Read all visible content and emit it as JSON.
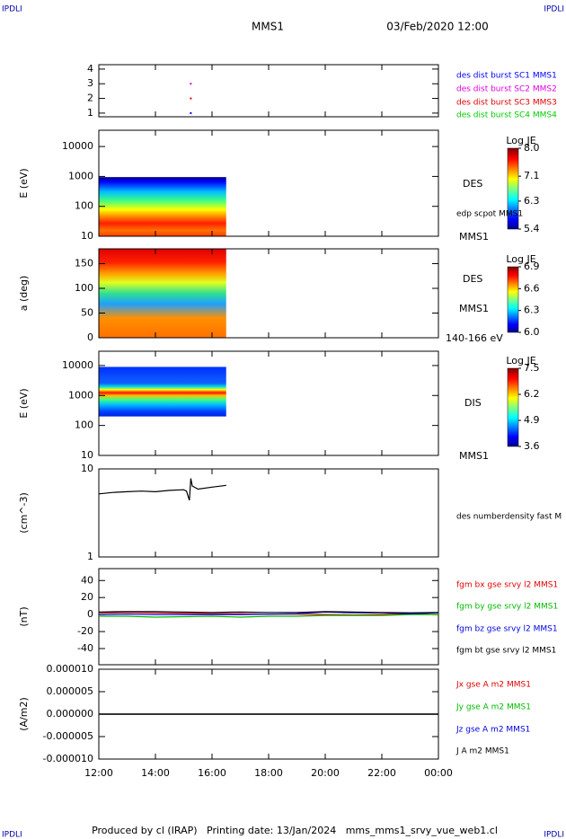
{
  "header": {
    "corner": "IPDLI",
    "spacecraft": "MMS1",
    "date": "03/Feb/2020 12:00"
  },
  "footer": "Produced by cl (IRAP)   Printing date: 13/Jan/2024   mms_mms1_srvy_vue_web1.cl",
  "chart_data": [
    {
      "type": "scatter",
      "ylim": [
        0.75,
        4.3
      ],
      "yticks": [
        1,
        2,
        3,
        4
      ],
      "xlim": [
        12,
        24
      ],
      "x": [
        15.25
      ],
      "series": [
        {
          "name": "des dist burst SC1 MMS1",
          "color": "#0000ff",
          "values": [
            1
          ]
        },
        {
          "name": "des dist burst SC2 MMS2",
          "color": "#e000e0",
          "values": [
            3
          ]
        },
        {
          "name": "des dist burst SC3 MMS3",
          "color": "#e00000",
          "values": [
            2
          ]
        },
        {
          "name": "des dist burst SC4 MMS4",
          "color": "#00cc00",
          "values": [
            null
          ]
        }
      ]
    },
    {
      "type": "spectrogram",
      "y_label": "E (eV)",
      "log_y": true,
      "ylim": [
        10,
        35000
      ],
      "yticks": [
        10,
        100,
        1000,
        10000
      ],
      "xlim": [
        12,
        24
      ],
      "extent": {
        "x": [
          12,
          16.5
        ],
        "y": [
          10,
          950
        ]
      },
      "colorbar": {
        "label": "Log JE",
        "lim": [
          5.4,
          8.0
        ],
        "ticks": [
          {
            "value": 8.0,
            "label": "8.0"
          },
          7.1,
          6.3,
          5.4
        ]
      },
      "annotations": [
        "DES",
        "edp scpot MMS1",
        "MMS1"
      ]
    },
    {
      "type": "spectrogram",
      "y_label": "a (deg)",
      "log_y": false,
      "ylim": [
        0,
        180
      ],
      "yticks": [
        0,
        50,
        100,
        150
      ],
      "xlim": [
        12,
        24
      ],
      "extent": {
        "x": [
          12,
          16.5
        ],
        "y": [
          0,
          180
        ]
      },
      "colorbar": {
        "label": "Log JE",
        "lim": [
          6.0,
          6.9
        ],
        "ticks": [
          6.9,
          6.6,
          6.3,
          {
            "value": 6.0,
            "label": "6.0"
          }
        ]
      },
      "annotations": [
        "DES",
        "MMS1",
        "140-166 eV"
      ]
    },
    {
      "type": "spectrogram",
      "y_label": "E (eV)",
      "log_y": true,
      "ylim": [
        10,
        30000
      ],
      "yticks": [
        10,
        100,
        1000,
        10000
      ],
      "xlim": [
        12,
        24
      ],
      "extent": {
        "x": [
          12,
          16.5
        ],
        "y": [
          200,
          9000
        ]
      },
      "colorbar": {
        "label": "Log JE",
        "lim": [
          3.6,
          7.5
        ],
        "ticks": [
          7.5,
          6.2,
          4.9,
          3.6
        ]
      },
      "annotations": [
        "DIS",
        "MMS1"
      ]
    },
    {
      "type": "line",
      "y_label": "(cm^-3)",
      "log_y": true,
      "ylim": [
        1,
        10
      ],
      "yticks": [
        1,
        10
      ],
      "xlim": [
        12,
        24
      ],
      "x": [
        12,
        12.5,
        13,
        13.5,
        14,
        14.5,
        15,
        15.1,
        15.2,
        15.25,
        15.3,
        15.5,
        16,
        16.5
      ],
      "series": [
        {
          "name": "des numberdensity fast M",
          "color": "#000000",
          "values": [
            5.2,
            5.4,
            5.5,
            5.6,
            5.5,
            5.7,
            5.8,
            5.6,
            4.4,
            7.8,
            6.4,
            5.9,
            6.2,
            6.5
          ]
        }
      ]
    },
    {
      "type": "line",
      "y_label": "(nT)",
      "log_y": false,
      "ylim": [
        -59,
        54
      ],
      "yticks": [
        -40,
        -20,
        0,
        20,
        40
      ],
      "xlim": [
        12,
        24
      ],
      "x": [
        12,
        13,
        14,
        15,
        16,
        17,
        18,
        19,
        20,
        21,
        22,
        23,
        24
      ],
      "series": [
        {
          "name": "fgm bx gse srvy l2 MMS1",
          "color": "#e00000",
          "values": [
            2,
            2.5,
            2,
            1.5,
            1,
            1,
            0.5,
            0.5,
            0,
            -0.5,
            0,
            1,
            0
          ]
        },
        {
          "name": "fgm by gse srvy l2 MMS1",
          "color": "#00bb00",
          "values": [
            -2,
            -2,
            -3,
            -2.5,
            -2,
            -3,
            -2,
            -2,
            -1,
            -1,
            -1,
            0,
            0
          ]
        },
        {
          "name": "fgm bz gse srvy l2 MMS1",
          "color": "#0000e0",
          "values": [
            0,
            0.5,
            0,
            0,
            0,
            0,
            0.5,
            1,
            3,
            2,
            2,
            1,
            2
          ]
        },
        {
          "name": "fgm bt gse srvy l2 MMS1",
          "color": "#000000",
          "values": [
            3,
            3.5,
            3.5,
            3,
            2.5,
            3,
            2.5,
            2.5,
            3.5,
            3,
            2.5,
            2,
            2.5
          ]
        }
      ]
    },
    {
      "type": "line",
      "y_label": "(A/m2)",
      "log_y": false,
      "ylim": [
        -1e-05,
        1e-05
      ],
      "yticks": [
        {
          "value": 1e-05,
          "label": "0.000010"
        },
        {
          "value": 5e-06,
          "label": "0.000005"
        },
        {
          "value": 0,
          "label": "0.000000"
        },
        {
          "value": -5e-06,
          "label": "-0.000005"
        },
        {
          "value": -1e-05,
          "label": "-0.000010"
        }
      ],
      "xlim": [
        12,
        24
      ],
      "x": [
        12,
        14,
        16,
        18,
        20,
        22,
        24
      ],
      "xticks": [
        {
          "value": 12,
          "label": "12:00"
        },
        {
          "value": 14,
          "label": "14:00"
        },
        {
          "value": 16,
          "label": "16:00"
        },
        {
          "value": 18,
          "label": "18:00"
        },
        {
          "value": 20,
          "label": "20:00"
        },
        {
          "value": 22,
          "label": "22:00"
        },
        {
          "value": 24,
          "label": "00:00"
        }
      ],
      "series": [
        {
          "name": "Jx gse A m2 MMS1",
          "color": "#e00000",
          "values": [
            0,
            0,
            0,
            0,
            0,
            0,
            0
          ]
        },
        {
          "name": "Jy gse A m2 MMS1",
          "color": "#00bb00",
          "values": [
            0,
            0,
            0,
            0,
            0,
            0,
            0
          ]
        },
        {
          "name": "Jz gse A m2 MMS1",
          "color": "#0000e0",
          "values": [
            0,
            0,
            0,
            0,
            0,
            0,
            0
          ]
        },
        {
          "name": "J A m2 MMS1",
          "color": "#000000",
          "values": [
            0,
            0,
            0,
            0,
            0,
            0,
            0
          ]
        }
      ]
    }
  ]
}
